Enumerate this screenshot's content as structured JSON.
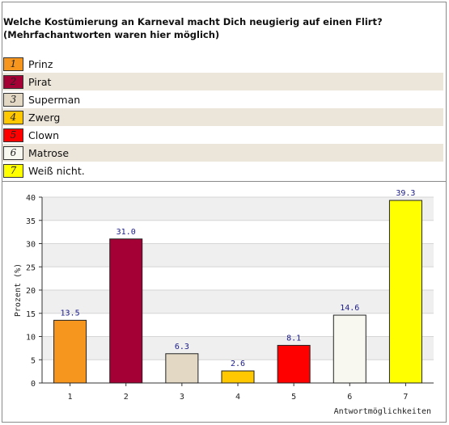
{
  "title_line1": "Welche Kostümierung an Karneval macht Dich neugierig auf einen Flirt?",
  "title_line2": "(Mehrfachantworten waren hier möglich)",
  "legend": [
    {
      "num": "1",
      "label": "Prinz",
      "color": "#f7961e"
    },
    {
      "num": "2",
      "label": "Pirat",
      "color": "#a50035"
    },
    {
      "num": "3",
      "label": "Superman",
      "color": "#e3d8c4"
    },
    {
      "num": "4",
      "label": "Zwerg",
      "color": "#ffc800"
    },
    {
      "num": "5",
      "label": "Clown",
      "color": "#ff0000"
    },
    {
      "num": "6",
      "label": "Matrose",
      "color": "#f8f8f0"
    },
    {
      "num": "7",
      "label": "Weiß nicht.",
      "color": "#ffff00"
    }
  ],
  "chart_data": {
    "type": "bar",
    "categories": [
      "1",
      "2",
      "3",
      "4",
      "5",
      "6",
      "7"
    ],
    "values": [
      13.5,
      31.0,
      6.3,
      2.6,
      8.1,
      14.6,
      39.3
    ],
    "value_labels": [
      "13.5",
      "31.0",
      "6.3",
      "2.6",
      "8.1",
      "14.6",
      "39.3"
    ],
    "colors": [
      "#f7961e",
      "#a50035",
      "#e3d8c4",
      "#ffc800",
      "#ff0000",
      "#f8f8f0",
      "#ffff00"
    ],
    "ylabel": "Prozent (%)",
    "xlabel": "Antwortmöglichkeiten",
    "ylim": [
      0,
      40
    ],
    "yticks": [
      "0",
      "5",
      "10",
      "15",
      "20",
      "25",
      "30",
      "35",
      "40"
    ],
    "grid": "horizontal bands"
  }
}
